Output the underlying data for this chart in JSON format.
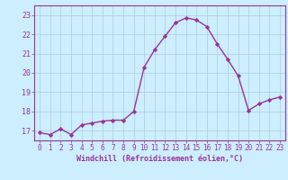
{
  "x": [
    0,
    1,
    2,
    3,
    4,
    5,
    6,
    7,
    8,
    9,
    10,
    11,
    12,
    13,
    14,
    15,
    16,
    17,
    18,
    19,
    20,
    21,
    22,
    23
  ],
  "y": [
    16.9,
    16.8,
    17.1,
    16.8,
    17.3,
    17.4,
    17.5,
    17.55,
    17.55,
    18.0,
    20.3,
    21.2,
    21.9,
    22.6,
    22.85,
    22.75,
    22.4,
    21.5,
    20.7,
    19.85,
    18.05,
    18.4,
    18.6,
    18.75
  ],
  "line_color": "#993399",
  "marker": "D",
  "marker_size": 2.2,
  "bg_color": "#cceeff",
  "grid_color": "#aaccdd",
  "xlabel": "Windchill (Refroidissement éolien,°C)",
  "xlabel_color": "#993399",
  "tick_color": "#993399",
  "axis_color": "#993399",
  "ylim": [
    16.5,
    23.5
  ],
  "xlim": [
    -0.5,
    23.5
  ],
  "yticks": [
    17,
    18,
    19,
    20,
    21,
    22,
    23
  ],
  "xticks": [
    0,
    1,
    2,
    3,
    4,
    5,
    6,
    7,
    8,
    9,
    10,
    11,
    12,
    13,
    14,
    15,
    16,
    17,
    18,
    19,
    20,
    21,
    22,
    23
  ],
  "xlabel_fontsize": 6.0,
  "tick_fontsize": 5.5,
  "linewidth": 1.0
}
